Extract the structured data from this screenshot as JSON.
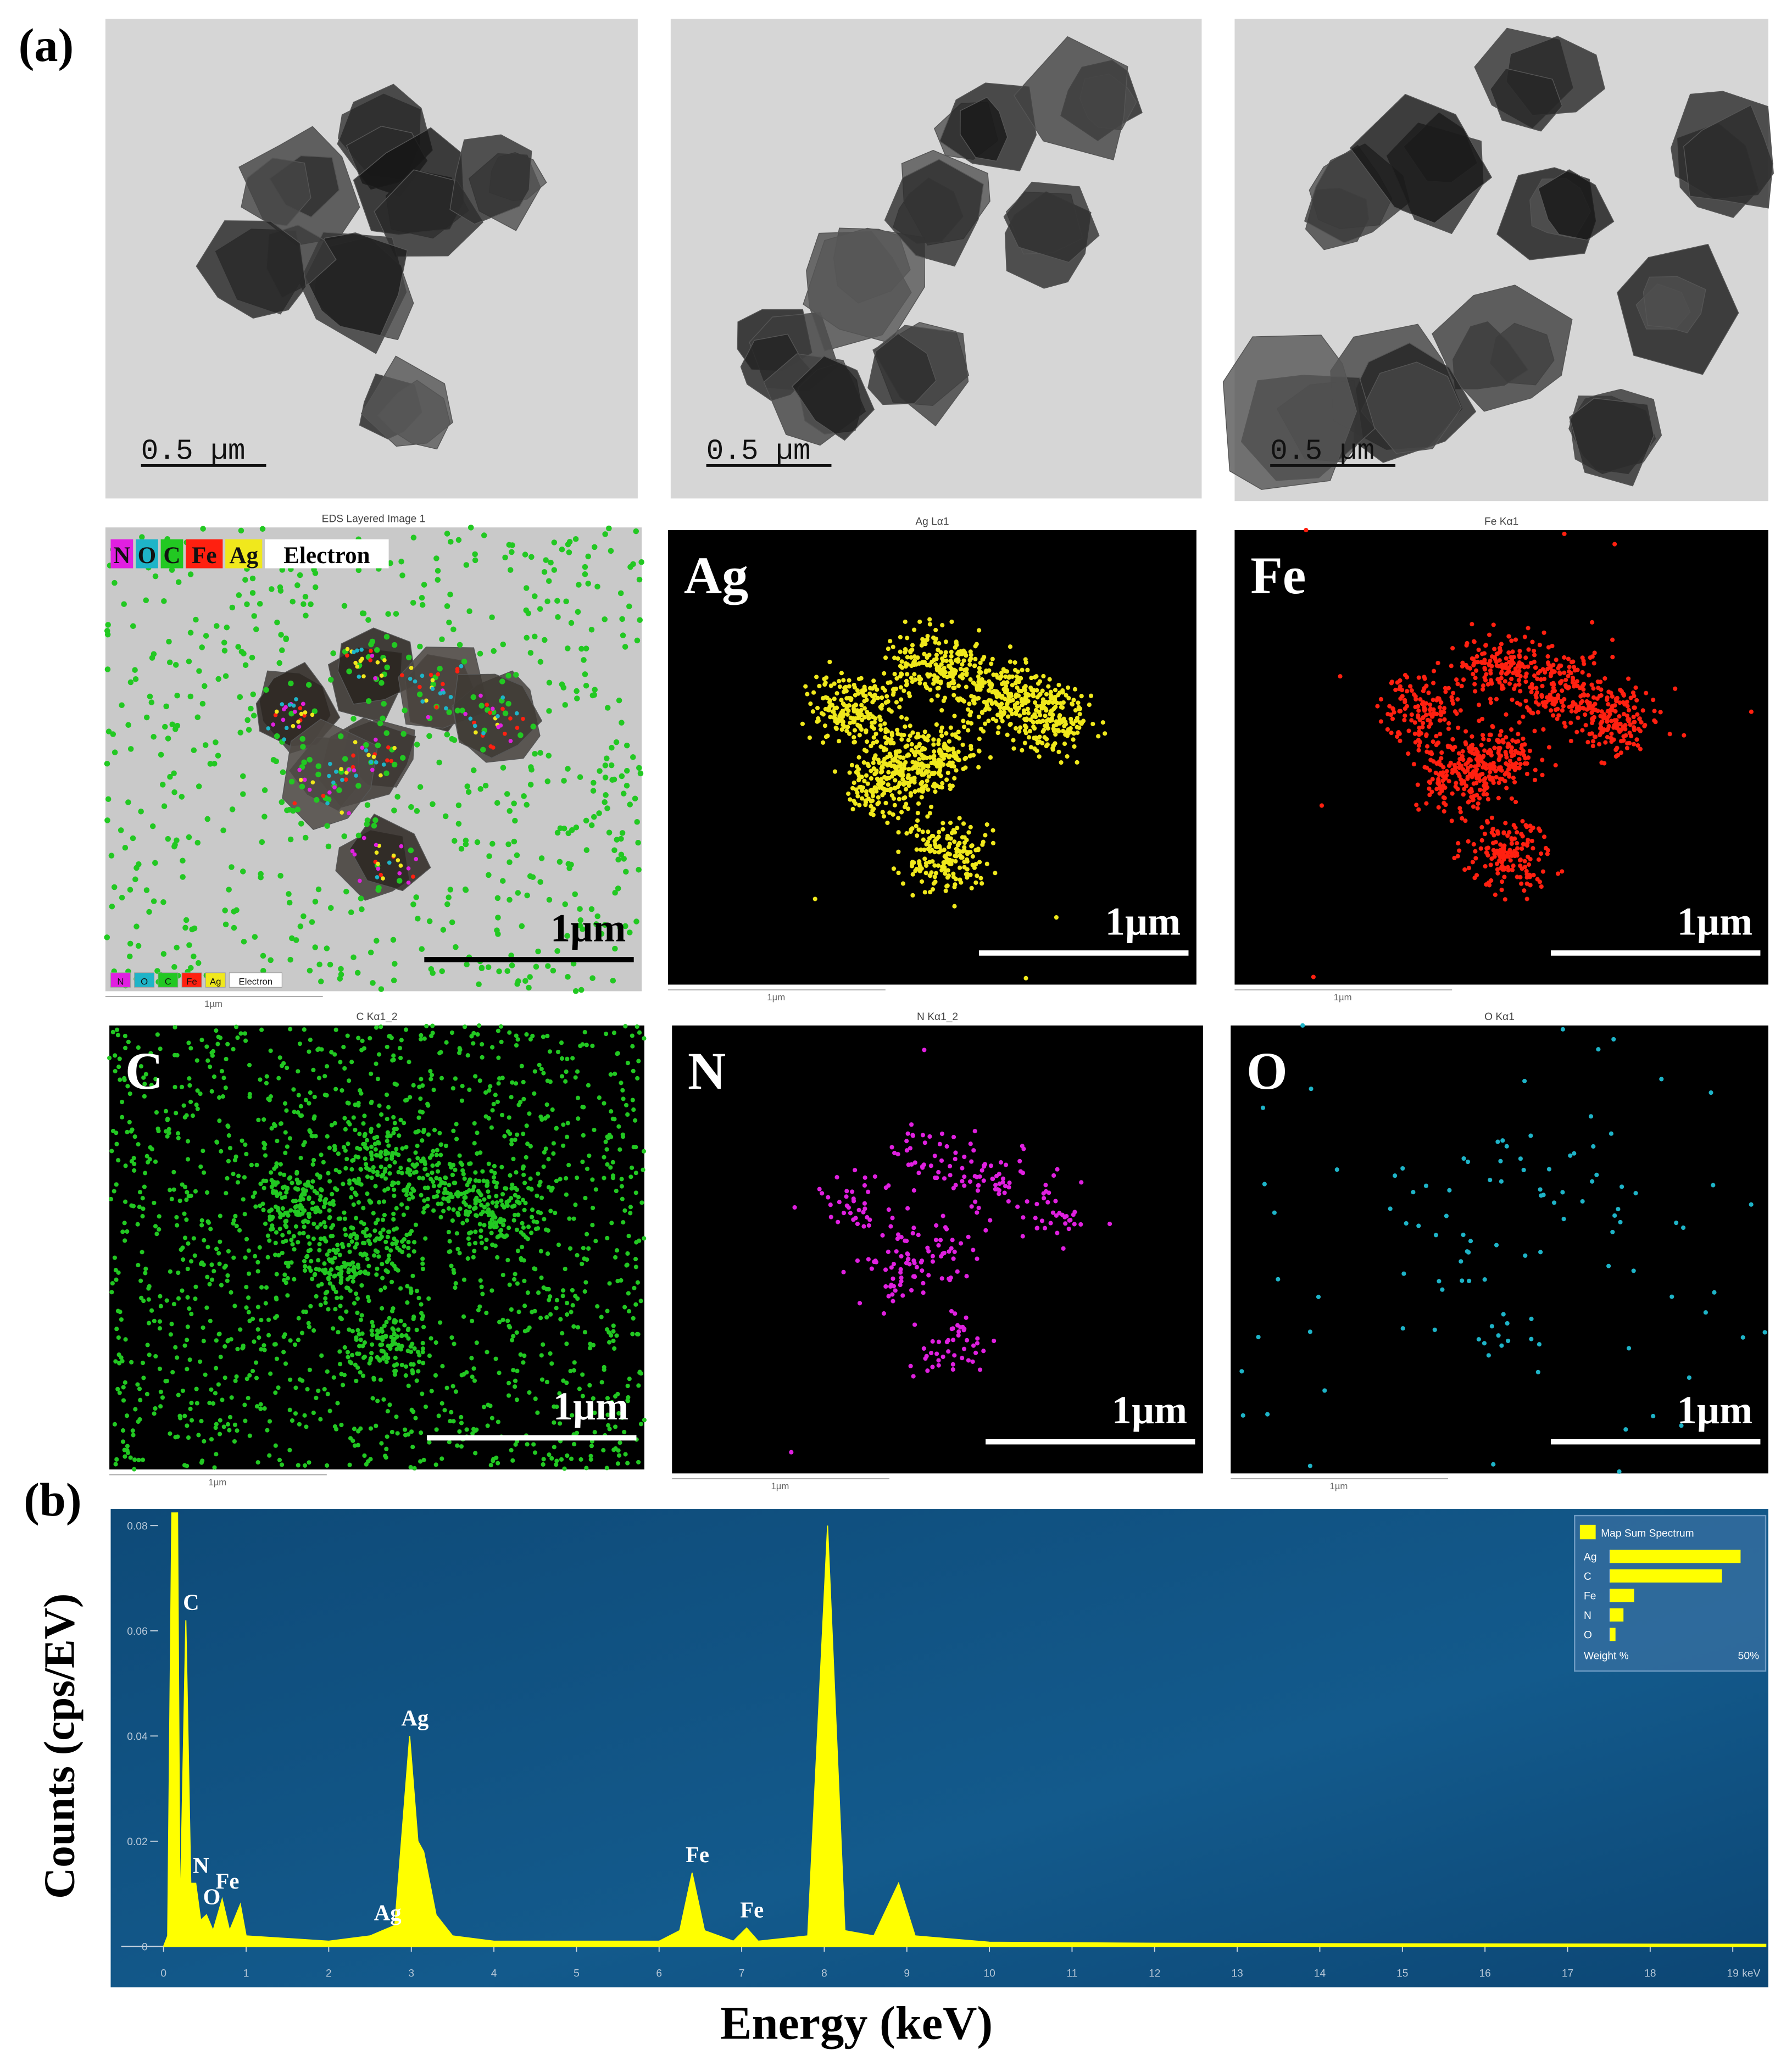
{
  "panel_labels": [
    "(a)",
    "(b)"
  ],
  "tem_images": [
    {
      "scale_bar": "0.5 µm"
    },
    {
      "scale_bar": "0.5 µm"
    },
    {
      "scale_bar": "0.5 µm"
    }
  ],
  "eds_maps": [
    {
      "title": "EDS Layered Image 1",
      "legend": [
        "N",
        "O",
        "C",
        "Fe",
        "Ag",
        "Electron"
      ],
      "scale_bar": "1µm",
      "footer_scale": "1µm"
    },
    {
      "title": "Ag Lα1",
      "element": "Ag",
      "color": "#f0e81c",
      "scale_bar": "1µm",
      "footer_scale": "1µm"
    },
    {
      "title": "Fe Kα1",
      "element": "Fe",
      "color": "#ff2010",
      "scale_bar": "1µm",
      "footer_scale": "1µm"
    },
    {
      "title": "C Kα1_2",
      "element": "C",
      "color": "#22c822",
      "scale_bar": "1µm",
      "footer_scale": "1µm"
    },
    {
      "title": "N Kα1_2",
      "element": "N",
      "color": "#e020e0",
      "scale_bar": "1µm",
      "footer_scale": "1µm"
    },
    {
      "title": "O Kα1",
      "element": "O",
      "color": "#1eb4c8",
      "scale_bar": "1µm",
      "footer_scale": "1µm"
    }
  ],
  "chart_data": [
    {
      "type": "area",
      "xlabel": "Energy (keV)",
      "ylabel": "Counts (cps/EV)",
      "x_unit": "keV",
      "x": [
        0,
        0.05,
        0.1,
        0.17,
        0.2,
        0.27,
        0.33,
        0.39,
        0.45,
        0.52,
        0.6,
        0.71,
        0.8,
        0.93,
        1.0,
        1.5,
        2.0,
        2.5,
        2.65,
        2.8,
        2.98,
        3.08,
        3.15,
        3.3,
        3.5,
        4.0,
        5.0,
        6.0,
        6.25,
        6.4,
        6.55,
        6.9,
        7.06,
        7.2,
        7.8,
        8.04,
        8.25,
        8.6,
        8.9,
        9.1,
        10,
        12,
        15,
        19.4
      ],
      "series": [
        {
          "name": "Map Sum Spectrum",
          "color": "#ffff00",
          "values": [
            0,
            0.002,
            0.0824,
            0.0824,
            0.005,
            0.062,
            0.012,
            0.012,
            0.005,
            0.006,
            0.003,
            0.009,
            0.003,
            0.008,
            0.002,
            0.0015,
            0.001,
            0.002,
            0.003,
            0.004,
            0.04,
            0.02,
            0.018,
            0.006,
            0.002,
            0.001,
            0.001,
            0.001,
            0.003,
            0.014,
            0.003,
            0.001,
            0.0035,
            0.001,
            0.002,
            0.08,
            0.003,
            0.002,
            0.012,
            0.002,
            0.0008,
            0.0006,
            0.0005,
            0.0004
          ]
        }
      ],
      "annotations": [
        {
          "text": "C",
          "x": 0.27,
          "y": 0.062
        },
        {
          "text": "N",
          "x": 0.39,
          "y": 0.012
        },
        {
          "text": "O",
          "x": 0.52,
          "y": 0.006
        },
        {
          "text": "Fe",
          "x": 0.71,
          "y": 0.009
        },
        {
          "text": "Ag",
          "x": 2.65,
          "y": 0.003
        },
        {
          "text": "Ag",
          "x": 2.98,
          "y": 0.04
        },
        {
          "text": "Fe",
          "x": 6.4,
          "y": 0.014
        },
        {
          "text": "Fe",
          "x": 7.06,
          "y": 0.0035
        }
      ],
      "xlim": [
        -0.64,
        19.43
      ],
      "ylim": [
        0,
        0.0824
      ],
      "xticks": [
        0,
        1,
        2,
        3,
        4,
        5,
        6,
        7,
        8,
        9,
        10,
        11,
        12,
        13,
        14,
        15,
        16,
        17,
        18,
        19
      ],
      "yticks": [
        0,
        0.02,
        0.04,
        0.06,
        0.08
      ],
      "background": "#0e4a78"
    },
    {
      "type": "barh",
      "title": "Map Sum Spectrum",
      "color": "#ffff00",
      "categories": [
        "Ag",
        "C",
        "Fe",
        "N",
        "O"
      ],
      "values": [
        49,
        42,
        9,
        5,
        2
      ],
      "xlabel": "Weight %",
      "xlim": [
        0,
        50
      ],
      "xticks": [
        {
          "value": 50,
          "label": "50%"
        }
      ]
    }
  ]
}
